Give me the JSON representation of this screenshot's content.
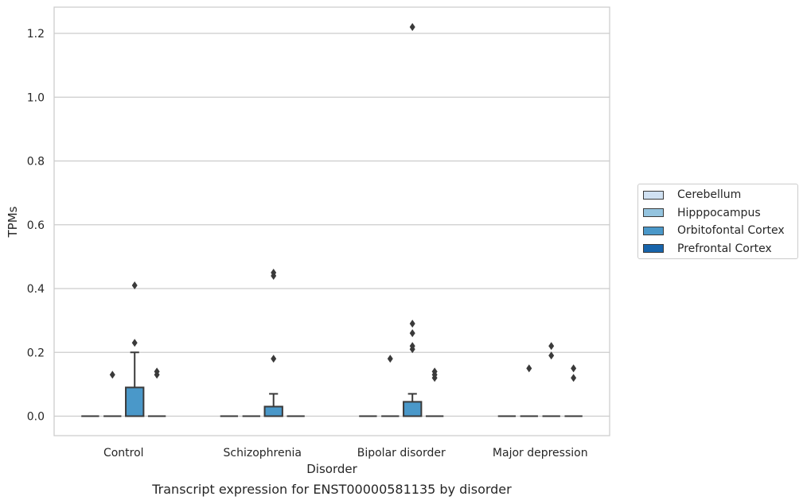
{
  "caption": "Transcript expression for ENST00000581135 by disorder",
  "chart_data": {
    "type": "box",
    "xlabel": "Disorder",
    "ylabel": "TPMs",
    "ylim": [
      -0.06,
      1.28
    ],
    "y_ticks": [
      "0.0",
      "0.2",
      "0.4",
      "0.6",
      "0.8",
      "1.0",
      "1.2"
    ],
    "categories": [
      "Control",
      "Schizophrenia",
      "Bipolar disorder",
      "Major depression"
    ],
    "grid": "horizontal",
    "legend_position": "right",
    "series": [
      {
        "name": "Cerebellum",
        "color": "#d0e1f2",
        "boxes": [
          {
            "q1": 0,
            "median": 0,
            "q3": 0,
            "whisker_low": 0,
            "whisker_high": 0,
            "outliers": []
          },
          {
            "q1": 0,
            "median": 0,
            "q3": 0,
            "whisker_low": 0,
            "whisker_high": 0,
            "outliers": []
          },
          {
            "q1": 0,
            "median": 0,
            "q3": 0,
            "whisker_low": 0,
            "whisker_high": 0,
            "outliers": []
          },
          {
            "q1": 0,
            "median": 0,
            "q3": 0,
            "whisker_low": 0,
            "whisker_high": 0,
            "outliers": []
          }
        ]
      },
      {
        "name": "Hipppocampus",
        "color": "#94c4df",
        "boxes": [
          {
            "q1": 0,
            "median": 0,
            "q3": 0,
            "whisker_low": 0,
            "whisker_high": 0,
            "outliers": [
              0.13
            ]
          },
          {
            "q1": 0,
            "median": 0,
            "q3": 0,
            "whisker_low": 0,
            "whisker_high": 0,
            "outliers": []
          },
          {
            "q1": 0,
            "median": 0,
            "q3": 0,
            "whisker_low": 0,
            "whisker_high": 0,
            "outliers": [
              0.18
            ]
          },
          {
            "q1": 0,
            "median": 0,
            "q3": 0,
            "whisker_low": 0,
            "whisker_high": 0,
            "outliers": [
              0.15
            ]
          }
        ]
      },
      {
        "name": "Orbitofontal Cortex",
        "color": "#4a98c9",
        "boxes": [
          {
            "q1": 0,
            "median": 0,
            "q3": 0.09,
            "whisker_low": 0,
            "whisker_high": 0.2,
            "outliers": [
              0.23,
              0.41
            ]
          },
          {
            "q1": 0,
            "median": 0,
            "q3": 0.03,
            "whisker_low": 0,
            "whisker_high": 0.07,
            "outliers": [
              0.18,
              0.44,
              0.45
            ]
          },
          {
            "q1": 0,
            "median": 0,
            "q3": 0.045,
            "whisker_low": 0,
            "whisker_high": 0.07,
            "outliers": [
              0.21,
              0.22,
              0.26,
              0.29,
              1.22
            ]
          },
          {
            "q1": 0,
            "median": 0,
            "q3": 0,
            "whisker_low": 0,
            "whisker_high": 0,
            "outliers": [
              0.19,
              0.22
            ]
          }
        ]
      },
      {
        "name": "Prefrontal Cortex",
        "color": "#1764ab",
        "boxes": [
          {
            "q1": 0,
            "median": 0,
            "q3": 0,
            "whisker_low": 0,
            "whisker_high": 0,
            "outliers": [
              0.13,
              0.14
            ]
          },
          {
            "q1": 0,
            "median": 0,
            "q3": 0,
            "whisker_low": 0,
            "whisker_high": 0,
            "outliers": []
          },
          {
            "q1": 0,
            "median": 0,
            "q3": 0,
            "whisker_low": 0,
            "whisker_high": 0,
            "outliers": [
              0.12,
              0.13,
              0.14
            ]
          },
          {
            "q1": 0,
            "median": 0,
            "q3": 0,
            "whisker_low": 0,
            "whisker_high": 0,
            "outliers": [
              0.12,
              0.15
            ]
          }
        ]
      }
    ]
  }
}
